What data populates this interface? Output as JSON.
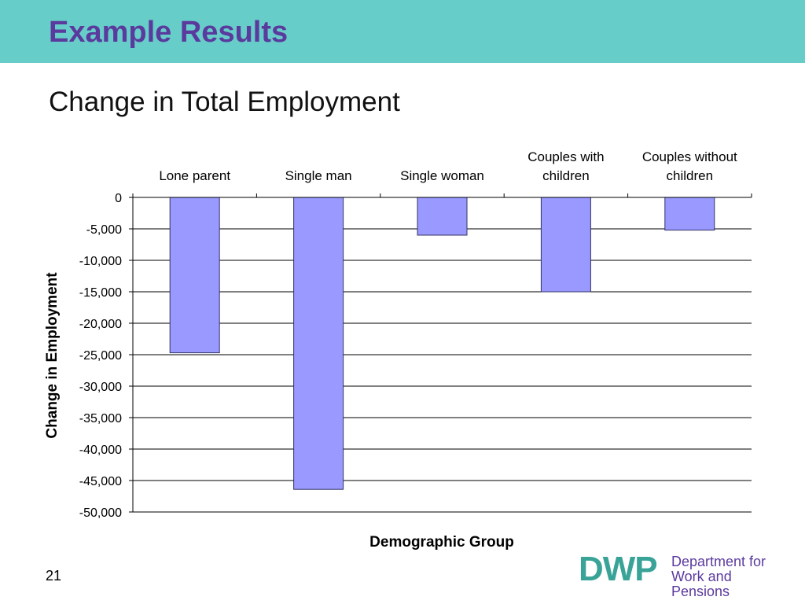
{
  "slide": {
    "title": "Example Results",
    "subtitle": "Change in Total Employment",
    "page_number": "21"
  },
  "logo": {
    "mark": "DWP",
    "line1": "Department for",
    "line2": "Work and Pensions"
  },
  "colors": {
    "header_band": "#66cdc8",
    "title": "#5b3a9e",
    "bar_fill": "#9999ff",
    "bar_stroke": "#333366",
    "logo_mark": "#3aa398"
  },
  "chart_data": {
    "type": "bar",
    "categories": [
      [
        "Lone parent"
      ],
      [
        "Single man"
      ],
      [
        "Single woman"
      ],
      [
        "Couples with",
        "children"
      ],
      [
        "Couples without",
        "children"
      ]
    ],
    "values": [
      -24700,
      -46400,
      -6000,
      -15000,
      -5200
    ],
    "xlabel": "Demographic Group",
    "ylabel": "Change in Employment",
    "ylim": [
      -50000,
      0
    ],
    "yticks": [
      0,
      -5000,
      -10000,
      -15000,
      -20000,
      -25000,
      -30000,
      -35000,
      -40000,
      -45000,
      -50000
    ],
    "ytick_labels": [
      "0",
      "-5,000",
      "-10,000",
      "-15,000",
      "-20,000",
      "-25,000",
      "-30,000",
      "-35,000",
      "-40,000",
      "-45,000",
      "-50,000"
    ],
    "category_axis_position": "top",
    "grid": true,
    "legend": "none"
  }
}
